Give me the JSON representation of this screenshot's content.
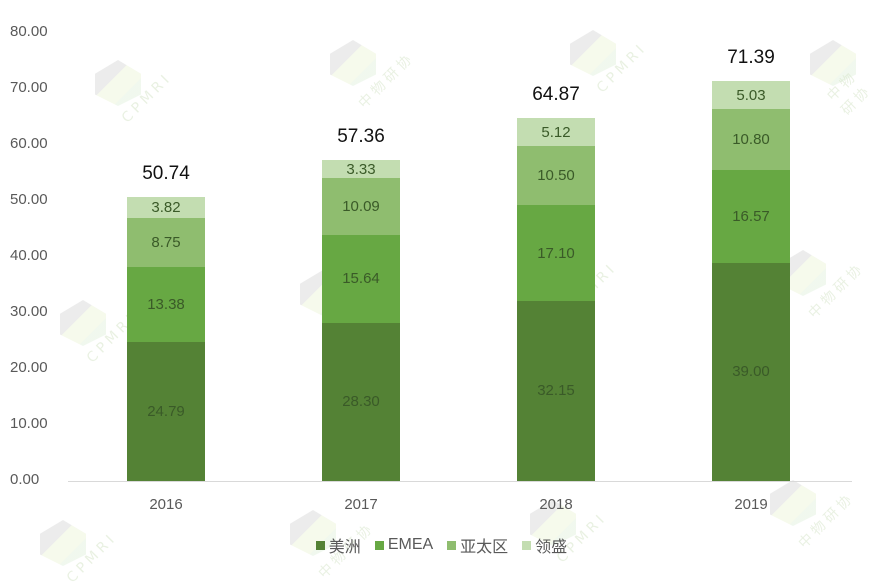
{
  "chart_data": {
    "type": "bar",
    "stacked": true,
    "title": "",
    "xlabel": "",
    "ylabel": "",
    "ylim": [
      0,
      80
    ],
    "y_ticks": [
      "0.00",
      "10.00",
      "20.00",
      "30.00",
      "40.00",
      "50.00",
      "60.00",
      "70.00",
      "80.00"
    ],
    "categories": [
      "2016",
      "2017",
      "2018",
      "2019"
    ],
    "series": [
      {
        "name": "美洲",
        "color": "#548235",
        "values": [
          24.79,
          28.3,
          32.15,
          39.0
        ]
      },
      {
        "name": "EMEA",
        "color": "#67a843",
        "values": [
          13.38,
          15.64,
          17.1,
          16.57
        ]
      },
      {
        "name": "亚太区",
        "color": "#8fbd6f",
        "values": [
          8.75,
          10.09,
          10.5,
          10.8
        ]
      },
      {
        "name": "领盛",
        "color": "#c3ddb1",
        "values": [
          3.82,
          3.33,
          5.12,
          5.03
        ]
      }
    ],
    "totals": [
      50.74,
      57.36,
      64.87,
      71.39
    ],
    "data_labels": {
      "美洲": [
        "24.79",
        "28.30",
        "32.15",
        "39.00"
      ],
      "EMEA": [
        "13.38",
        "15.64",
        "17.10",
        "16.57"
      ],
      "亚太区": [
        "8.75",
        "10.09",
        "10.50",
        "10.80"
      ],
      "领盛": [
        "3.82",
        "3.33",
        "5.12",
        "5.03"
      ]
    },
    "total_labels": [
      "50.74",
      "57.36",
      "64.87",
      "71.39"
    ],
    "grid": false,
    "legend_position": "bottom"
  },
  "watermark": {
    "text_cn": "中物研协",
    "text_en": "CPMRI"
  }
}
